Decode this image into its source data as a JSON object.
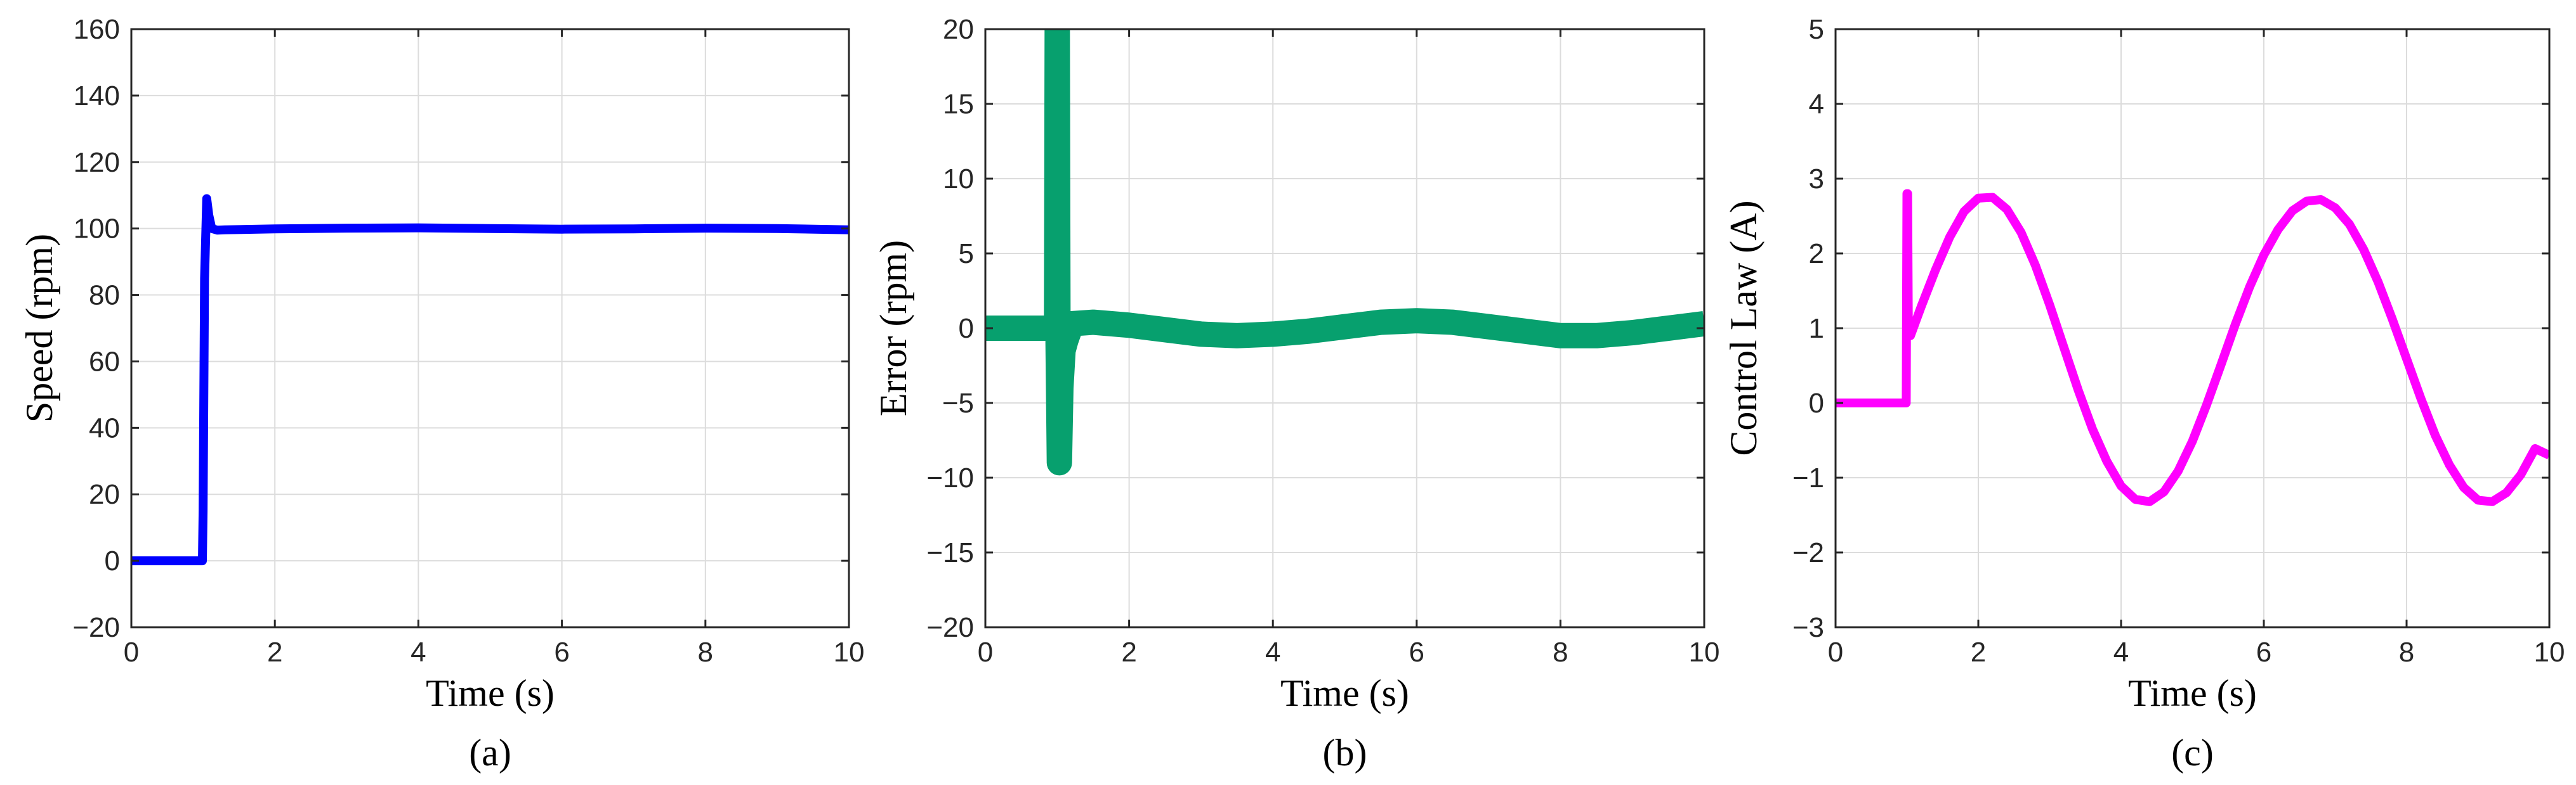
{
  "chart_data": [
    {
      "type": "line",
      "panel_label": "(a)",
      "xlabel": "Time (s)",
      "ylabel": "Speed (rpm)",
      "xlim": [
        0,
        10
      ],
      "ylim": [
        -20,
        160
      ],
      "xticks": [
        0,
        2,
        4,
        6,
        8,
        10
      ],
      "yticks": [
        -20,
        0,
        20,
        40,
        60,
        80,
        100,
        120,
        140,
        160
      ],
      "xtick_labels": [
        "0",
        "2",
        "4",
        "6",
        "8",
        "10"
      ],
      "ytick_labels": [
        "−20",
        "0",
        "20",
        "40",
        "60",
        "80",
        "100",
        "120",
        "140",
        "160"
      ],
      "grid": true,
      "series": [
        {
          "color": "#0000ff",
          "line_width": 14,
          "x": [
            0,
            0.99,
            1.0,
            1.02,
            1.05,
            1.08,
            1.12,
            1.2,
            1.3,
            2,
            3,
            4,
            5,
            6,
            7,
            8,
            9,
            10
          ],
          "y": [
            0,
            0,
            15,
            85,
            109,
            104,
            100,
            99.5,
            99.6,
            99.9,
            100.1,
            100.2,
            100,
            99.8,
            99.9,
            100.1,
            100,
            99.6
          ]
        }
      ]
    },
    {
      "type": "line",
      "panel_label": "(b)",
      "xlabel": "Time (s)",
      "ylabel": "Error (rpm)",
      "xlim": [
        0,
        10
      ],
      "ylim": [
        -20,
        20
      ],
      "xticks": [
        0,
        2,
        4,
        6,
        8,
        10
      ],
      "yticks": [
        -20,
        -15,
        -10,
        -5,
        0,
        5,
        10,
        15,
        20
      ],
      "xtick_labels": [
        "0",
        "2",
        "4",
        "6",
        "8",
        "10"
      ],
      "ytick_labels": [
        "−20",
        "−15",
        "−10",
        "−5",
        "0",
        "5",
        "10",
        "15",
        "20"
      ],
      "grid": true,
      "series": [
        {
          "color": "#07a06e",
          "line_width": 40,
          "x": [
            0,
            0.99,
            1.0,
            1.01,
            1.03,
            1.05,
            1.08,
            1.12,
            1.2,
            1.5,
            2,
            2.5,
            3,
            3.5,
            4,
            4.5,
            5,
            5.5,
            6,
            6.5,
            7,
            7.5,
            8,
            8.5,
            9,
            9.5,
            10
          ],
          "y": [
            0,
            0,
            20,
            0,
            -9,
            -4,
            -1.5,
            -0.8,
            0.3,
            0.4,
            0.2,
            -0.1,
            -0.4,
            -0.5,
            -0.4,
            -0.2,
            0.1,
            0.4,
            0.5,
            0.4,
            0.1,
            -0.2,
            -0.5,
            -0.5,
            -0.3,
            0.0,
            0.3
          ]
        }
      ]
    },
    {
      "type": "line",
      "panel_label": "(c)",
      "xlabel": "Time (s)",
      "ylabel": "Control Law (A)",
      "xlim": [
        0,
        10
      ],
      "ylim": [
        -3,
        5
      ],
      "xticks": [
        0,
        2,
        4,
        6,
        8,
        10
      ],
      "yticks": [
        -3,
        -2,
        -1,
        0,
        1,
        2,
        3,
        4,
        5
      ],
      "xtick_labels": [
        "0",
        "2",
        "4",
        "6",
        "8",
        "10"
      ],
      "ytick_labels": [
        "−3",
        "−2",
        "−1",
        "0",
        "1",
        "2",
        "3",
        "4",
        "5"
      ],
      "grid": true,
      "series": [
        {
          "color": "#ff00ff",
          "line_width": 14,
          "x": [
            0,
            0.99,
            1.0,
            1.01,
            1.02,
            1.05,
            1.2,
            1.4,
            1.6,
            1.8,
            2.0,
            2.2,
            2.4,
            2.6,
            2.8,
            3.0,
            3.2,
            3.4,
            3.6,
            3.8,
            4.0,
            4.2,
            4.4,
            4.6,
            4.8,
            5.0,
            5.2,
            5.4,
            5.6,
            5.8,
            6.0,
            6.2,
            6.4,
            6.6,
            6.8,
            7.0,
            7.2,
            7.4,
            7.6,
            7.8,
            8.0,
            8.2,
            8.4,
            8.6,
            8.8,
            9.0,
            9.2,
            9.4,
            9.6,
            9.8,
            10.0
          ],
          "y": [
            0,
            0,
            2.8,
            2.8,
            0.9,
            0.9,
            1.29,
            1.78,
            2.22,
            2.56,
            2.74,
            2.75,
            2.59,
            2.28,
            1.84,
            1.31,
            0.74,
            0.17,
            -0.35,
            -0.78,
            -1.11,
            -1.29,
            -1.32,
            -1.19,
            -0.91,
            -0.51,
            -0.02,
            0.51,
            1.05,
            1.55,
            1.98,
            2.32,
            2.57,
            2.7,
            2.72,
            2.61,
            2.39,
            2.05,
            1.62,
            1.12,
            0.59,
            0.06,
            -0.43,
            -0.83,
            -1.13,
            -1.3,
            -1.32,
            -1.2,
            -0.96,
            -0.61,
            -0.7
          ]
        }
      ]
    }
  ]
}
